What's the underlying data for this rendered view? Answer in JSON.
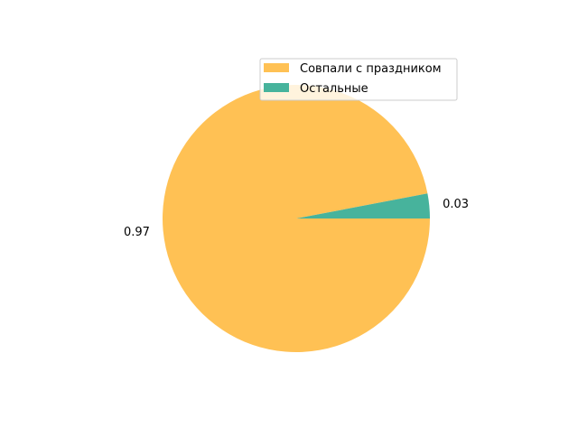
{
  "chart_data": {
    "type": "pie",
    "title": "",
    "categories": [
      "Совпали с праздником",
      "Остальные"
    ],
    "values": [
      0.97,
      0.03
    ],
    "labels": [
      "0.97",
      "0.03"
    ],
    "colors": [
      "#ffc154",
      "#47b39c"
    ],
    "start_angle_deg": 0,
    "direction": "clockwise",
    "legend": {
      "placement": "upper-right",
      "entries": [
        "Совпали с праздником",
        "Остальные"
      ]
    }
  }
}
